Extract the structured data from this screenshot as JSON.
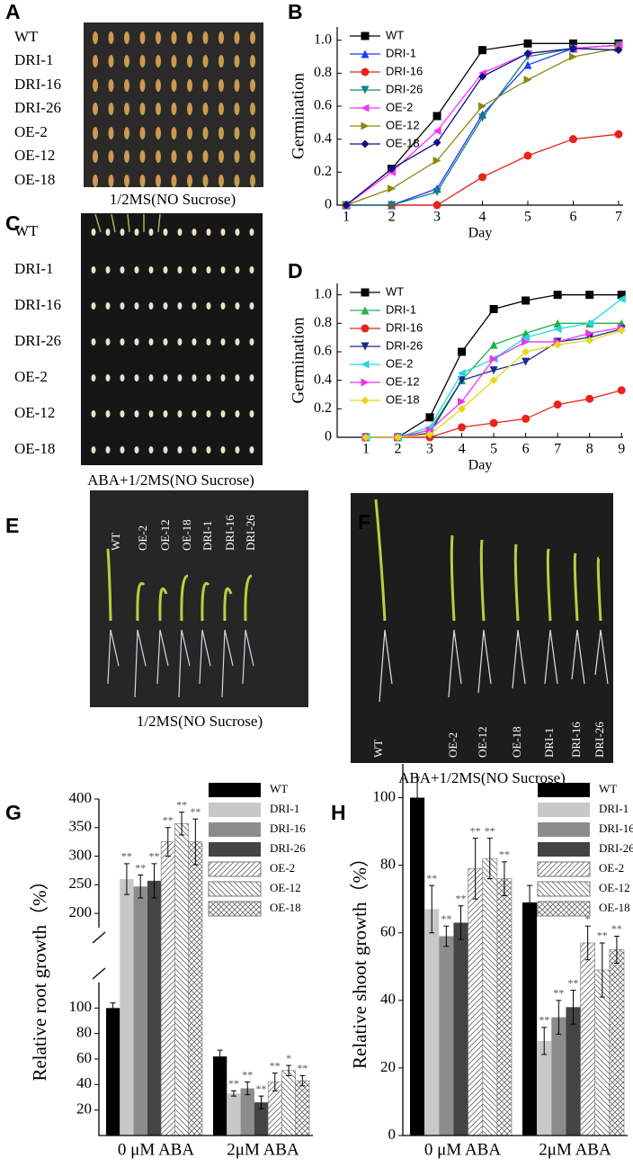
{
  "panels": {
    "A": {
      "letter": "A",
      "rows": [
        "WT",
        "DRI-1",
        "DRI-16",
        "DRI-26",
        "OE-2",
        "OE-12",
        "OE-18"
      ],
      "caption": "1/2MS(NO Sucrose)"
    },
    "C": {
      "letter": "C",
      "rows": [
        "WT",
        "DRI-1",
        "DRI-16",
        "DRI-26",
        "OE-2",
        "OE-12",
        "OE-18"
      ],
      "caption": "ABA+1/2MS(NO Sucrose)"
    },
    "E": {
      "letter": "E",
      "labels": [
        "WT",
        "OE-2",
        "OE-12",
        "OE-18",
        "DRI-1",
        "DRI-16",
        "DRI-26"
      ],
      "caption": "1/2MS(NO Sucrose)"
    },
    "F": {
      "letter": "F",
      "labels": [
        "WT",
        "OE-2",
        "OE-12",
        "OE-18",
        "DRI-1",
        "DRI-16",
        "DRI-26"
      ],
      "caption": "ABA+1/2MS(NO Sucrose)"
    }
  },
  "chart_data": [
    {
      "type": "line",
      "panel": "B",
      "y_label": "Germination",
      "x_label": "Day",
      "x": [
        1,
        2,
        3,
        4,
        5,
        6,
        7
      ],
      "xlim": [
        0.8,
        7.1
      ],
      "xticks": [
        1,
        2,
        3,
        4,
        5,
        6,
        7
      ],
      "ylim": [
        0,
        1.08
      ],
      "yticks": [
        0,
        0.2,
        0.4,
        0.6,
        0.8,
        {
          "value": 1,
          "label": "1.0"
        }
      ],
      "legend": "upper left",
      "series": [
        {
          "name": "WT",
          "color": "#000000",
          "marker": "square",
          "values": [
            0,
            0.22,
            0.54,
            0.94,
            0.98,
            0.98,
            0.98
          ]
        },
        {
          "name": "DRI-1",
          "color": "#1a3cff",
          "marker": "triangle-up",
          "values": [
            0,
            0,
            0.1,
            0.55,
            0.85,
            0.95,
            0.97
          ]
        },
        {
          "name": "DRI-16",
          "color": "#e8231c",
          "marker": "circle",
          "values": [
            0,
            0,
            0,
            0.17,
            0.3,
            0.4,
            0.43
          ]
        },
        {
          "name": "DRI-26",
          "color": "#118080",
          "marker": "triangle-down",
          "values": [
            0,
            0,
            0.08,
            0.53,
            0.9,
            0.95,
            0.97
          ]
        },
        {
          "name": "OE-2",
          "color": "#ff33ff",
          "marker": "triangle-left",
          "values": [
            0,
            0.2,
            0.45,
            0.8,
            0.92,
            0.95,
            0.97
          ]
        },
        {
          "name": "OE-12",
          "color": "#8a8a10",
          "marker": "triangle-right",
          "values": [
            0,
            0.1,
            0.27,
            0.6,
            0.76,
            0.9,
            0.95
          ]
        },
        {
          "name": "OE-18",
          "color": "#101080",
          "marker": "diamond",
          "values": [
            0,
            0.22,
            0.38,
            0.78,
            0.92,
            0.95,
            0.94
          ]
        }
      ]
    },
    {
      "type": "line",
      "panel": "D",
      "y_label": "Germination",
      "x_label": "Day",
      "x": [
        1,
        2,
        3,
        4,
        5,
        6,
        7,
        8,
        9
      ],
      "xlim": [
        0.1,
        9.05
      ],
      "xticks": [
        1,
        2,
        3,
        4,
        5,
        6,
        7,
        8,
        9
      ],
      "ylim": [
        0,
        1.08
      ],
      "yticks": [
        0,
        0.2,
        0.4,
        0.6,
        0.8,
        {
          "value": 1,
          "label": "1.0"
        }
      ],
      "legend": "upper left",
      "series": [
        {
          "name": "WT",
          "color": "#000000",
          "marker": "square",
          "values": [
            0,
            0,
            0.14,
            0.6,
            0.9,
            0.96,
            1,
            1,
            1
          ]
        },
        {
          "name": "DRI-1",
          "color": "#22b04a",
          "marker": "triangle-up",
          "values": [
            0,
            0,
            0.05,
            0.4,
            0.65,
            0.73,
            0.8,
            0.8,
            0.8
          ]
        },
        {
          "name": "DRI-16",
          "color": "#e8231c",
          "marker": "circle",
          "values": [
            0,
            0,
            0,
            0.07,
            0.1,
            0.13,
            0.23,
            0.27,
            0.33
          ]
        },
        {
          "name": "DRI-26",
          "color": "#1a2a90",
          "marker": "triangle-down",
          "values": [
            0,
            0,
            0.03,
            0.4,
            0.47,
            0.53,
            0.67,
            0.7,
            0.76
          ]
        },
        {
          "name": "OE-2",
          "color": "#22d6e6",
          "marker": "triangle-left",
          "values": [
            0,
            0,
            0.07,
            0.45,
            0.55,
            0.7,
            0.76,
            0.8,
            0.97
          ]
        },
        {
          "name": "OE-12",
          "color": "#ee33ee",
          "marker": "triangle-right",
          "values": [
            0,
            0,
            0.05,
            0.25,
            0.55,
            0.67,
            0.67,
            0.73,
            0.77
          ]
        },
        {
          "name": "OE-18",
          "color": "#e6d81a",
          "marker": "diamond",
          "values": [
            0,
            0,
            0.02,
            0.2,
            0.4,
            0.6,
            0.65,
            0.68,
            0.75
          ]
        }
      ]
    },
    {
      "type": "bar",
      "panel": "G",
      "y_label": "Relative root growth（%）",
      "categories": [
        "0 μM ABA",
        "2μM ABA"
      ],
      "ylim": [
        0,
        400
      ],
      "axis_break": [
        120,
        175
      ],
      "yticks": [
        20,
        40,
        60,
        80,
        100,
        200,
        250,
        300,
        350,
        400
      ],
      "series": [
        {
          "name": "WT",
          "color": "#000000",
          "values": [
            100,
            62
          ],
          "errors": [
            4,
            5
          ],
          "significance": [
            null,
            null
          ]
        },
        {
          "name": "DRI-1",
          "color": "#c8c8c8",
          "values": [
            260,
            33
          ],
          "errors": [
            27,
            2
          ],
          "significance": [
            "**",
            "**"
          ]
        },
        {
          "name": "DRI-16",
          "color": "#8c8c8c",
          "values": [
            247,
            37
          ],
          "errors": [
            20,
            5
          ],
          "significance": [
            "**",
            "**"
          ]
        },
        {
          "name": "DRI-26",
          "color": "#444444",
          "values": [
            257,
            26
          ],
          "errors": [
            30,
            5
          ],
          "significance": [
            "**",
            "**"
          ]
        },
        {
          "name": "OE-2",
          "color": "#ffffff",
          "hatch": "diagonal",
          "values": [
            325,
            42
          ],
          "errors": [
            25,
            7
          ],
          "significance": [
            "**",
            "**"
          ]
        },
        {
          "name": "OE-12",
          "color": "#ffffff",
          "hatch": "back-diagonal",
          "values": [
            357,
            51
          ],
          "errors": [
            20,
            4
          ],
          "significance": [
            "**",
            "*"
          ]
        },
        {
          "name": "OE-18",
          "color": "#ffffff",
          "hatch": "cross",
          "values": [
            325,
            43
          ],
          "errors": [
            40,
            4
          ],
          "significance": [
            "**",
            "**"
          ]
        }
      ]
    },
    {
      "type": "bar",
      "panel": "H",
      "y_label": "Relative shoot growth（%）",
      "categories": [
        "0 μM ABA",
        "2μM ABA"
      ],
      "ylim": [
        0,
        110
      ],
      "yticks": [
        0,
        20,
        40,
        60,
        80,
        100
      ],
      "series": [
        {
          "name": "WT",
          "color": "#000000",
          "values": [
            100,
            69
          ],
          "errors": [
            6,
            5
          ],
          "significance": [
            null,
            null
          ]
        },
        {
          "name": "DRI-1",
          "color": "#c8c8c8",
          "values": [
            67,
            28
          ],
          "errors": [
            7,
            4
          ],
          "significance": [
            "**",
            "**"
          ]
        },
        {
          "name": "DRI-16",
          "color": "#8c8c8c",
          "values": [
            59,
            35
          ],
          "errors": [
            3,
            5
          ],
          "significance": [
            "**",
            "**"
          ]
        },
        {
          "name": "DRI-26",
          "color": "#444444",
          "values": [
            63,
            38
          ],
          "errors": [
            5,
            5
          ],
          "significance": [
            "**",
            "**"
          ]
        },
        {
          "name": "OE-2",
          "color": "#ffffff",
          "hatch": "diagonal",
          "values": [
            79,
            57
          ],
          "errors": [
            9,
            5
          ],
          "significance": [
            "**",
            "*"
          ]
        },
        {
          "name": "OE-12",
          "color": "#ffffff",
          "hatch": "back-diagonal",
          "values": [
            82,
            49
          ],
          "errors": [
            6,
            8
          ],
          "significance": [
            "**",
            "**"
          ]
        },
        {
          "name": "OE-18",
          "color": "#ffffff",
          "hatch": "cross",
          "values": [
            76,
            55
          ],
          "errors": [
            5,
            4
          ],
          "significance": [
            "**",
            "**"
          ]
        }
      ]
    }
  ]
}
